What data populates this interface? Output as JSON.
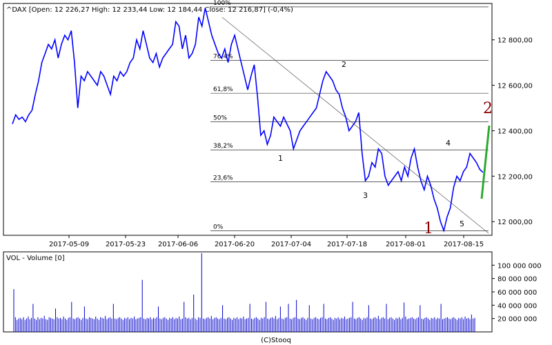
{
  "chart_data": [
    {
      "type": "line",
      "header": "^DAX [Open: 12 226,27  High: 12 233,44  Low: 12 184,44  Close: 12 216,87] (-0,4%)",
      "x_ticks": [
        "2017-05-09",
        "2017-05-23",
        "2017-06-06",
        "2017-06-20",
        "2017-07-04",
        "2017-07-18",
        "2017-08-01",
        "2017-08-15"
      ],
      "y_ticks": [
        "12 000,00",
        "12 200,00",
        "12 400,00",
        "12 600,00",
        "12 800,00"
      ],
      "y_tick_values": [
        12000,
        12200,
        12400,
        12600,
        12800
      ],
      "ylim": [
        11940,
        12960
      ],
      "series": [
        {
          "values": [
            12430,
            12470,
            12450,
            12460,
            12440,
            12470,
            12490,
            12560,
            12620,
            12700,
            12740,
            12780,
            12760,
            12800,
            12720,
            12780,
            12820,
            12800,
            12840,
            12700,
            12500,
            12640,
            12620,
            12660,
            12640,
            12620,
            12600,
            12660,
            12640,
            12600,
            12560,
            12640,
            12620,
            12660,
            12640,
            12660,
            12700,
            12720,
            12800,
            12760,
            12840,
            12780,
            12720,
            12700,
            12740,
            12680,
            12720,
            12740,
            12760,
            12780,
            12880,
            12860,
            12760,
            12820,
            12720,
            12740,
            12780,
            12900,
            12860,
            12940,
            12880,
            12820,
            12780,
            12740,
            12720,
            12760,
            12700,
            12780,
            12820,
            12760,
            12700,
            12640,
            12580,
            12640,
            12690,
            12550,
            12380,
            12400,
            12340,
            12380,
            12460,
            12440,
            12420,
            12460,
            12430,
            12400,
            12320,
            12360,
            12400,
            12420,
            12440,
            12460,
            12480,
            12500,
            12560,
            12620,
            12660,
            12640,
            12620,
            12580,
            12560,
            12500,
            12460,
            12400,
            12420,
            12440,
            12480,
            12300,
            12180,
            12200,
            12260,
            12240,
            12320,
            12300,
            12200,
            12160,
            12180,
            12200,
            12220,
            12180,
            12240,
            12200,
            12280,
            12320,
            12240,
            12180,
            12140,
            12200,
            12160,
            12100,
            12060,
            12000,
            11960,
            12020,
            12060,
            12150,
            12200,
            12180,
            12220,
            12240,
            12300,
            12280,
            12260,
            12230,
            12216.87
          ]
        }
      ],
      "fib_levels": [
        {
          "label": "0%",
          "value": 11960
        },
        {
          "label": "23,6%",
          "value": 12175
        },
        {
          "label": "38,2%",
          "value": 12316
        },
        {
          "label": "50%",
          "value": 12440
        },
        {
          "label": "61,8%",
          "value": 12565
        },
        {
          "label": "76,4%",
          "value": 12710
        },
        {
          "label": "100%",
          "value": 12945
        }
      ],
      "wave_labels": [
        "1",
        "2",
        "3",
        "4",
        "5"
      ],
      "big_labels": [
        "1",
        "2"
      ]
    },
    {
      "type": "bar",
      "title": "VOL - Volume [0]",
      "y_ticks": [
        "20 000 000",
        "40 000 000",
        "60 000 000",
        "80 000 000",
        "100 000 000"
      ],
      "y_tick_values": [
        20000000,
        40000000,
        60000000,
        80000000,
        100000000
      ],
      "ylim": [
        0,
        120000000
      ],
      "values": [
        64000000,
        22000000,
        18000000,
        20000000,
        21000000,
        19000000,
        22000000,
        18000000,
        20000000,
        23000000,
        19000000,
        21000000,
        42000000,
        20000000,
        18000000,
        22000000,
        19000000,
        21000000,
        20000000,
        24000000,
        19000000,
        18000000,
        22000000,
        21000000,
        20000000,
        19000000,
        35000000,
        22000000,
        20000000,
        21000000,
        19000000,
        23000000,
        20000000,
        18000000,
        21000000,
        22000000,
        45000000,
        20000000,
        19000000,
        21000000,
        22000000,
        20000000,
        18000000,
        21000000,
        38000000,
        20000000,
        19000000,
        22000000,
        21000000,
        20000000,
        19000000,
        23000000,
        20000000,
        18000000,
        22000000,
        21000000,
        20000000,
        24000000,
        19000000,
        21000000,
        22000000,
        20000000,
        42000000,
        20000000,
        19000000,
        21000000,
        22000000,
        20000000,
        18000000,
        21000000,
        20000000,
        22000000,
        19000000,
        21000000,
        20000000,
        23000000,
        19000000,
        20000000,
        21000000,
        22000000,
        78000000,
        20000000,
        19000000,
        21000000,
        20000000,
        22000000,
        19000000,
        21000000,
        20000000,
        22000000,
        38000000,
        20000000,
        19000000,
        21000000,
        22000000,
        20000000,
        18000000,
        21000000,
        20000000,
        22000000,
        19000000,
        21000000,
        20000000,
        23000000,
        19000000,
        20000000,
        45000000,
        22000000,
        20000000,
        21000000,
        19000000,
        21000000,
        56000000,
        20000000,
        18000000,
        22000000,
        21000000,
        118000000,
        20000000,
        19000000,
        21000000,
        22000000,
        20000000,
        24000000,
        19000000,
        21000000,
        22000000,
        20000000,
        19000000,
        21000000,
        40000000,
        20000000,
        19000000,
        21000000,
        22000000,
        20000000,
        18000000,
        21000000,
        20000000,
        22000000,
        19000000,
        21000000,
        20000000,
        23000000,
        19000000,
        20000000,
        21000000,
        42000000,
        20000000,
        19000000,
        21000000,
        22000000,
        20000000,
        18000000,
        21000000,
        20000000,
        22000000,
        45000000,
        20000000,
        19000000,
        21000000,
        22000000,
        20000000,
        24000000,
        19000000,
        21000000,
        38000000,
        20000000,
        19000000,
        21000000,
        22000000,
        42000000,
        20000000,
        19000000,
        21000000,
        22000000,
        48000000,
        20000000,
        19000000,
        21000000,
        22000000,
        20000000,
        18000000,
        21000000,
        40000000,
        20000000,
        19000000,
        21000000,
        22000000,
        20000000,
        19000000,
        21000000,
        22000000,
        42000000,
        20000000,
        19000000,
        21000000,
        22000000,
        20000000,
        18000000,
        21000000,
        20000000,
        22000000,
        19000000,
        21000000,
        20000000,
        23000000,
        19000000,
        20000000,
        21000000,
        22000000,
        45000000,
        20000000,
        19000000,
        21000000,
        22000000,
        20000000,
        18000000,
        21000000,
        20000000,
        22000000,
        40000000,
        20000000,
        19000000,
        21000000,
        22000000,
        20000000,
        24000000,
        19000000,
        21000000,
        22000000,
        20000000,
        42000000,
        19000000,
        21000000,
        22000000,
        20000000,
        18000000,
        21000000,
        20000000,
        22000000,
        19000000,
        21000000,
        44000000,
        23000000,
        19000000,
        20000000,
        21000000,
        22000000,
        20000000,
        19000000,
        21000000,
        22000000,
        40000000,
        20000000,
        19000000,
        21000000,
        22000000,
        20000000,
        18000000,
        21000000,
        20000000,
        22000000,
        19000000,
        21000000,
        20000000,
        42000000,
        19000000,
        20000000,
        21000000,
        22000000,
        20000000,
        19000000,
        21000000,
        22000000,
        20000000,
        18000000,
        21000000,
        20000000,
        22000000,
        19000000,
        23000000,
        20000000,
        21000000,
        19000000,
        26000000,
        20000000,
        21000000
      ]
    }
  ],
  "footer": "(C)Stooq",
  "colors": {
    "price": "#0000ff",
    "volume": "#0000cc",
    "grid": "#000000",
    "green": "#2eaa2e",
    "red": "#8b0000"
  }
}
